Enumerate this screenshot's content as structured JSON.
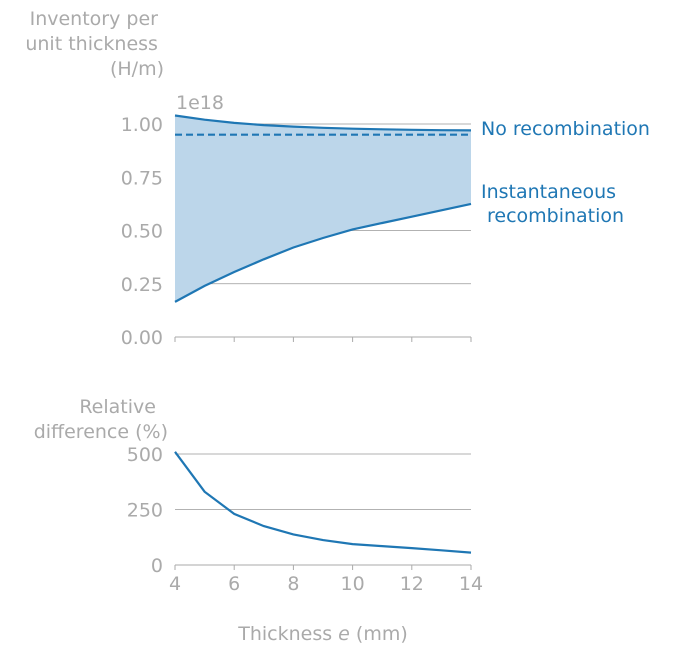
{
  "colors": {
    "line": "#1f77b4",
    "fill": "#bcd6ea",
    "text_muted": "#aaaaaa",
    "grid": "#999999"
  },
  "chart_data": [
    {
      "type": "area",
      "ylabel_lines": [
        "Inventory per",
        "unit thickness",
        "(H/m)"
      ],
      "offset_text": "1e18",
      "ylim": [
        0,
        1.0
      ],
      "xlim": [
        4,
        14
      ],
      "yticks": [
        0.0,
        0.25,
        0.5,
        0.75,
        1.0
      ],
      "ytick_labels": [
        "0.00",
        "0.25",
        "0.50",
        "0.75",
        "1.00"
      ],
      "xticks": [
        4,
        6,
        8,
        10,
        12,
        14
      ],
      "grid": "horizontal",
      "x": [
        4,
        5,
        6,
        7,
        8,
        9,
        10,
        11,
        12,
        13,
        14
      ],
      "series": [
        {
          "name": "No recombination",
          "label_lines": [
            "No recombination"
          ],
          "values": [
            1.04,
            1.02,
            1.005,
            0.995,
            0.988,
            0.982,
            0.978,
            0.975,
            0.973,
            0.971,
            0.97
          ],
          "style": "solid"
        },
        {
          "name": "Instantaneous recombination",
          "label_lines": [
            "Instantaneous",
            "recombination"
          ],
          "values": [
            0.165,
            0.24,
            0.305,
            0.365,
            0.42,
            0.465,
            0.505,
            0.535,
            0.565,
            0.595,
            0.625
          ],
          "style": "solid"
        },
        {
          "name": "",
          "values": [
            0.95,
            0.95,
            0.95,
            0.95,
            0.95,
            0.95,
            0.95,
            0.95,
            0.95,
            0.95,
            0.95
          ],
          "style": "dashed"
        }
      ]
    },
    {
      "type": "line",
      "ylabel_lines": [
        "Relative",
        "difference (%)"
      ],
      "xlabel_prefix": "Thickness ",
      "xlabel_var": "e",
      "xlabel_suffix": " (mm)",
      "ylim": [
        0,
        500
      ],
      "xlim": [
        4,
        14
      ],
      "yticks": [
        0,
        250,
        500
      ],
      "ytick_labels": [
        "0",
        "250",
        "500"
      ],
      "xticks": [
        4,
        6,
        8,
        10,
        12,
        14
      ],
      "xtick_labels": [
        "4",
        "6",
        "8",
        "10",
        "12",
        "14"
      ],
      "grid": "horizontal",
      "x": [
        4,
        5,
        6,
        7,
        8,
        9,
        10,
        11,
        12,
        13,
        14
      ],
      "series": [
        {
          "values": [
            510,
            330,
            230,
            175,
            138,
            112,
            94,
            85,
            76,
            66,
            56
          ],
          "style": "solid"
        }
      ]
    }
  ]
}
